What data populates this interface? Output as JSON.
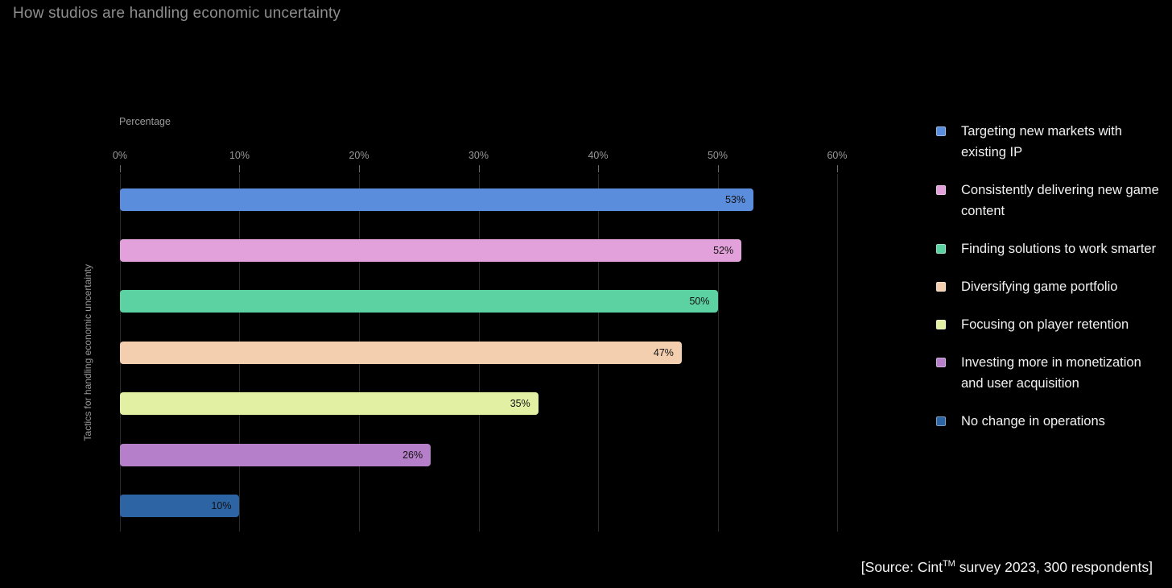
{
  "page": {
    "title": "How studios are handling economic uncertainty"
  },
  "chart_data": {
    "type": "bar",
    "orientation": "horizontal",
    "title": "How studios are handling economic uncertainty",
    "xlabel": "Percentage",
    "ylabel": "Tactics for handling economic uncertainty",
    "xlim": [
      0,
      60
    ],
    "grid": "vertical",
    "legend_position": "right",
    "x_ticks": [
      {
        "value": 0,
        "label": "0%"
      },
      {
        "value": 10,
        "label": "10%"
      },
      {
        "value": 20,
        "label": "20%"
      },
      {
        "value": 30,
        "label": "30%"
      },
      {
        "value": 40,
        "label": "40%"
      },
      {
        "value": 50,
        "label": "50%"
      },
      {
        "value": 60,
        "label": "60%"
      }
    ],
    "categories": [
      "Targeting new markets with existing IP",
      "Consistently delivering new game content",
      "Finding solutions to work smarter",
      "Diversifying game portfolio",
      "Focusing on player retention",
      "Investing more in monetization and user acquisition",
      "No change in operations"
    ],
    "values": [
      53,
      52,
      50,
      47,
      35,
      26,
      10
    ],
    "value_labels": [
      "53%",
      "52%",
      "50%",
      "47%",
      "35%",
      "26%",
      "10%"
    ],
    "colors": [
      "#5b8ddd",
      "#e2a1da",
      "#5cd1a1",
      "#f3cfaf",
      "#e2f0a4",
      "#b67fca",
      "#2c64a4"
    ]
  },
  "legend": {
    "items": [
      {
        "label": "Targeting new markets with existing IP",
        "color": "#5b8ddd"
      },
      {
        "label": "Consistently delivering new game content",
        "color": "#e2a1da"
      },
      {
        "label": "Finding solutions to work smarter",
        "color": "#5cd1a1"
      },
      {
        "label": "Diversifying game portfolio",
        "color": "#f3cfaf"
      },
      {
        "label": "Focusing on player retention",
        "color": "#e2f0a4"
      },
      {
        "label": "Investing more in monetization and user acquisition",
        "color": "#b67fca"
      },
      {
        "label": "No change in operations",
        "color": "#2c64a4"
      }
    ]
  },
  "source": {
    "prefix": "[Source: Cint",
    "sup": "TM",
    "suffix": " survey 2023, 300 respondents]"
  }
}
